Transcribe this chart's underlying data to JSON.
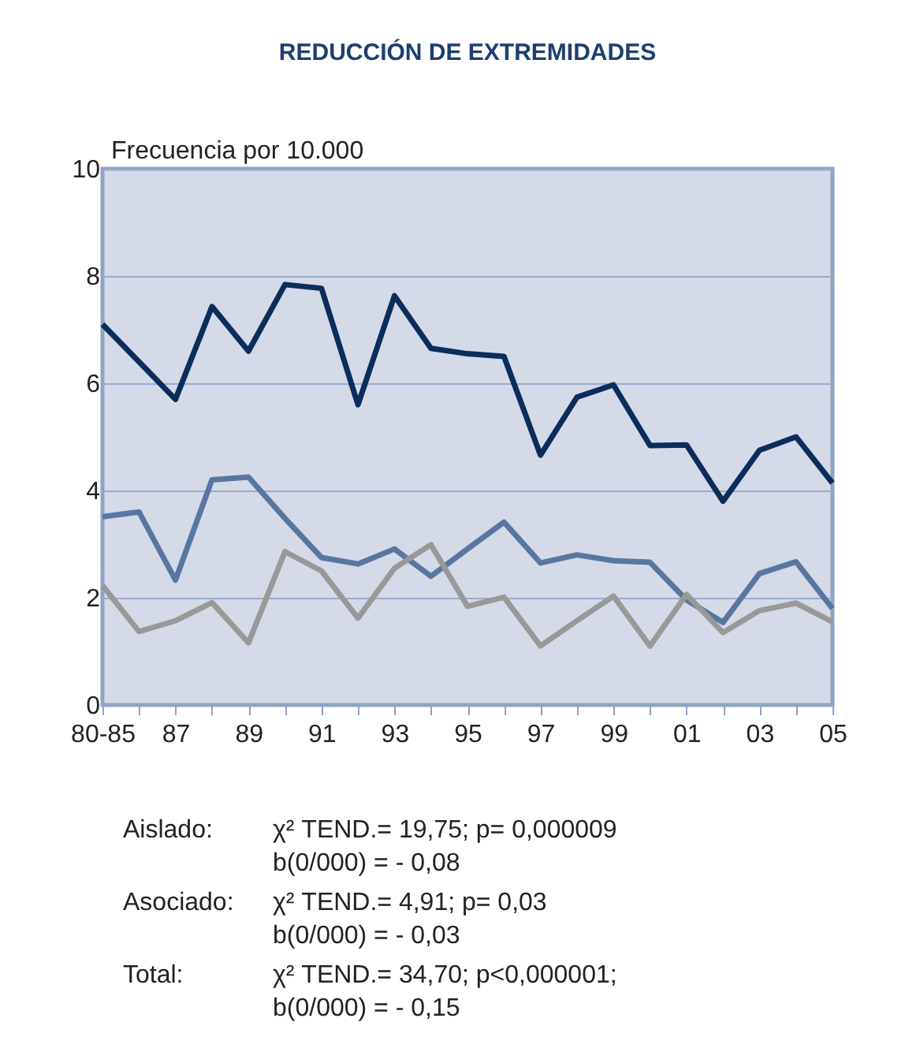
{
  "chart_data": {
    "type": "line",
    "title": "REDUCCIÓN DE EXTREMIDADES",
    "ylabel": "Frecuencia por 10.000",
    "categories": [
      "80-85",
      null,
      "87",
      null,
      "89",
      null,
      "91",
      null,
      "93",
      null,
      "95",
      null,
      "97",
      null,
      "99",
      null,
      "01",
      null,
      "03",
      null,
      "05"
    ],
    "series": [
      {
        "color": "#0b2d5b",
        "values": [
          7.1,
          6.4,
          5.7,
          7.43,
          6.6,
          7.84,
          7.77,
          5.6,
          7.63,
          6.65,
          6.55,
          6.5,
          4.66,
          5.74,
          5.97,
          4.84,
          4.85,
          3.8,
          4.75,
          5.0,
          4.14
        ]
      },
      {
        "color": "#5a76a0",
        "values": [
          3.51,
          3.6,
          2.33,
          4.2,
          4.25,
          3.48,
          2.75,
          2.63,
          2.91,
          2.4,
          2.91,
          3.41,
          2.65,
          2.8,
          2.69,
          2.66,
          1.96,
          1.54,
          2.45,
          2.67,
          1.8
        ]
      },
      {
        "color": "#999999",
        "values": [
          2.23,
          1.37,
          1.57,
          1.91,
          1.16,
          2.86,
          2.5,
          1.62,
          2.55,
          2.99,
          1.84,
          2.01,
          1.1,
          1.57,
          2.03,
          1.1,
          2.06,
          1.35,
          1.76,
          1.9,
          1.55
        ]
      }
    ],
    "ylim": [
      0,
      10
    ],
    "yticks": [
      0,
      2,
      4,
      6,
      8,
      10
    ],
    "grid": "y",
    "legend": false,
    "marker": "none",
    "line_style": "solid",
    "annotations": [
      "Aislado:",
      "χ² TEND.= 19,75;  p= 0,000009",
      "b(0/000) = - 0,08",
      "Asociado:",
      "χ² TEND.= 4,91;  p= 0,03",
      "b(0/000) = - 0,03",
      "Total:",
      "χ² TEND.= 34,70; p<0,000001;",
      "b(0/000) = - 0,15"
    ]
  }
}
